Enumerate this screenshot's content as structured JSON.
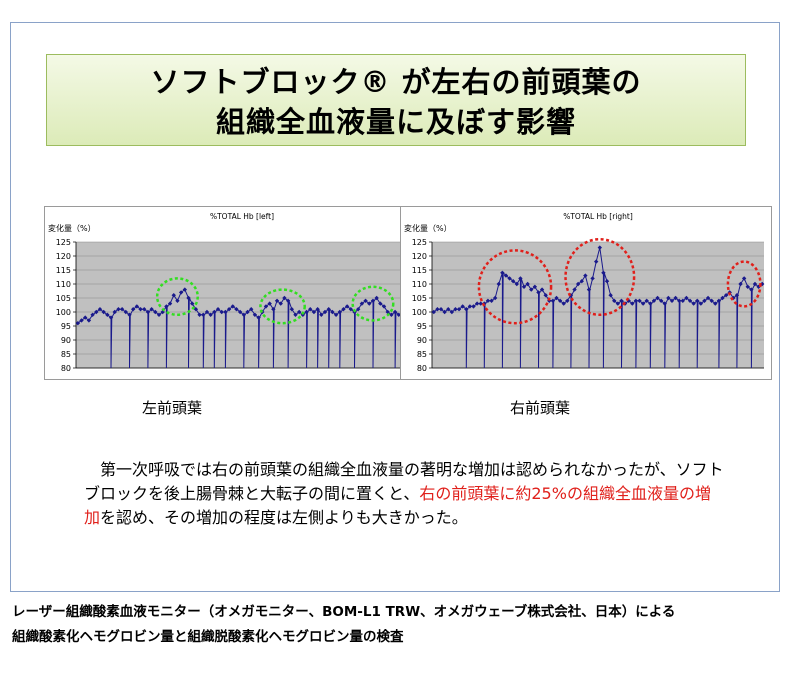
{
  "slide": {
    "title_line_1": "ソフトブロック® が左右の前頭葉の",
    "title_line_2": "組織全血液量に及ぼす影響"
  },
  "chart_data": [
    {
      "type": "line",
      "title": "%TOTAL Hb [left]",
      "ylabel": "変化量（%）",
      "xlabel": "",
      "ylim": [
        80,
        125
      ],
      "yticks": [
        80,
        85,
        90,
        95,
        100,
        105,
        110,
        115,
        120,
        125
      ],
      "grid": true,
      "plot_background": "#c0c0c0",
      "line_color": "#1a1a8c",
      "series": [
        {
          "values": [
            96,
            97,
            98,
            97,
            99,
            100,
            101,
            100,
            99,
            98,
            100,
            101,
            101,
            100,
            99,
            101,
            102,
            101,
            101,
            100,
            101,
            100,
            99,
            100,
            102,
            103,
            106,
            104,
            107,
            108,
            105,
            103,
            101,
            99,
            99,
            100,
            99,
            100,
            101,
            100,
            100,
            101,
            102,
            101,
            100,
            99,
            100,
            101,
            99,
            98,
            100,
            102,
            103,
            101,
            104,
            103,
            105,
            104,
            101,
            99,
            100,
            99,
            100,
            101,
            100,
            101,
            99,
            100,
            101,
            100,
            99,
            100,
            101,
            102,
            101,
            100,
            101,
            103,
            104,
            103,
            104,
            105,
            103,
            102,
            100,
            99,
            100,
            99,
            99,
            99
          ]
        }
      ],
      "dropouts": [
        9,
        14,
        19,
        24,
        30,
        34,
        37,
        40,
        45,
        49,
        53,
        57,
        62,
        65,
        68,
        71,
        75,
        80,
        86,
        89
      ],
      "annotations": {
        "ellipse_color": "#33dd22",
        "ellipses": [
          {
            "x_from": 22,
            "x_to": 33,
            "y_from": 99,
            "y_to": 112
          },
          {
            "x_from": 50,
            "x_to": 62,
            "y_from": 96,
            "y_to": 108
          },
          {
            "x_from": 75,
            "x_to": 86,
            "y_from": 97,
            "y_to": 109
          }
        ]
      }
    },
    {
      "type": "line",
      "title": "%TOTAL Hb [right]",
      "ylabel": "変化量（%）",
      "xlabel": "",
      "ylim": [
        80,
        125
      ],
      "yticks": [
        80,
        85,
        90,
        95,
        100,
        105,
        110,
        115,
        120,
        125
      ],
      "grid": true,
      "plot_background": "#c0c0c0",
      "line_color": "#1a1a8c",
      "series": [
        {
          "values": [
            100,
            101,
            101,
            100,
            101,
            100,
            101,
            101,
            102,
            101,
            102,
            102,
            103,
            103,
            103,
            104,
            104,
            105,
            110,
            114,
            113,
            112,
            111,
            110,
            112,
            109,
            110,
            108,
            109,
            107,
            108,
            106,
            104,
            104,
            105,
            104,
            103,
            104,
            106,
            108,
            110,
            111,
            113,
            108,
            112,
            118,
            123,
            114,
            111,
            106,
            104,
            103,
            104,
            103,
            104,
            103,
            104,
            104,
            103,
            104,
            103,
            104,
            105,
            104,
            103,
            105,
            104,
            105,
            104,
            104,
            105,
            104,
            103,
            104,
            103,
            104,
            105,
            104,
            103,
            104,
            105,
            106,
            107,
            105,
            106,
            110,
            112,
            109,
            108,
            110,
            109,
            110
          ]
        }
      ],
      "dropouts": [
        9,
        14,
        19,
        24,
        29,
        33,
        38,
        43,
        47,
        52,
        56,
        60,
        64,
        68,
        73,
        79,
        84,
        88
      ],
      "annotations": {
        "ellipse_color": "#e0201b",
        "ellipses": [
          {
            "x_from": 13,
            "x_to": 33,
            "y_from": 96,
            "y_to": 122
          },
          {
            "x_from": 37,
            "x_to": 56,
            "y_from": 99,
            "y_to": 126
          },
          {
            "x_from": 82,
            "x_to": 91,
            "y_from": 102,
            "y_to": 118
          }
        ]
      }
    }
  ],
  "labels": {
    "left": "左前頭葉",
    "right": "右前頭葉"
  },
  "body": {
    "part_1": "　第一次呼吸では右の前頭葉の組織全血液量の著明な増加は認められなかったが、ソフトブロックを後上腸骨棘と大転子の間に置くと、",
    "highlight": "右の前頭葉に約25%の組織全血液量の増加",
    "part_2": "を認め、その増加の程度は左側よりも大きかった。",
    "highlight_color": "#e0201b"
  },
  "footer": {
    "line_1": "レーザー組織酸素血液モニター（オメガモニター、BOM-L1 TRW、オメガウェーブ株式会社、日本）による",
    "line_2": "組織酸素化ヘモグロビン量と組織脱酸素化ヘモグロビン量の検査"
  }
}
